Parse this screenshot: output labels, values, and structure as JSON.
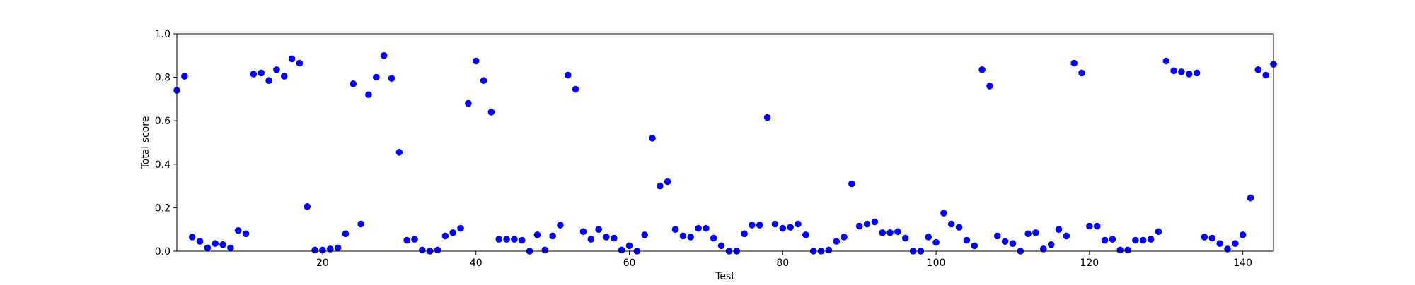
{
  "chart_data": {
    "type": "scatter",
    "title": "",
    "xlabel": "Test",
    "ylabel": "Total score",
    "xlim": [
      1,
      144
    ],
    "ylim": [
      0.0,
      1.0
    ],
    "x_ticks": [
      20,
      40,
      60,
      80,
      100,
      120,
      140
    ],
    "y_ticks": [
      0.0,
      0.2,
      0.4,
      0.6,
      0.8,
      1.0
    ],
    "y_tick_labels": [
      "0.0",
      "0.2",
      "0.4",
      "0.6",
      "0.8",
      "1.0"
    ],
    "grid": false,
    "marker_color": "#0000ff",
    "series": [
      {
        "x": [
          1,
          2,
          3,
          4,
          5,
          6,
          7,
          8,
          9,
          10,
          11,
          12,
          13,
          14,
          15,
          16,
          17,
          18,
          19,
          20,
          21,
          22,
          23,
          24,
          25,
          26,
          27,
          28,
          29,
          30,
          31,
          32,
          33,
          34,
          35,
          36,
          37,
          38,
          39,
          40,
          41,
          42,
          43,
          44,
          45,
          46,
          47,
          48,
          49,
          50,
          51,
          52,
          53,
          54,
          55,
          56,
          57,
          58,
          59,
          60,
          61,
          62,
          63,
          64,
          65,
          66,
          67,
          68,
          69,
          70,
          71,
          72,
          73,
          74,
          75,
          76,
          77,
          78,
          79,
          80,
          81,
          82,
          83,
          84,
          85,
          86,
          87,
          88,
          89,
          90,
          91,
          92,
          93,
          94,
          95,
          96,
          97,
          98,
          99,
          100,
          101,
          102,
          103,
          104,
          105,
          106,
          107,
          108,
          109,
          110,
          111,
          112,
          113,
          114,
          115,
          116,
          117,
          118,
          119,
          120,
          121,
          122,
          123,
          124,
          125,
          126,
          127,
          128,
          129,
          130,
          131,
          132,
          133,
          134,
          135,
          136,
          137,
          138,
          139,
          140,
          141,
          142,
          143,
          144
        ],
        "y": [
          0.74,
          0.805,
          0.065,
          0.045,
          0.015,
          0.035,
          0.03,
          0.015,
          0.095,
          0.08,
          0.815,
          0.82,
          0.785,
          0.835,
          0.805,
          0.885,
          0.865,
          0.205,
          0.005,
          0.005,
          0.01,
          0.015,
          0.08,
          0.77,
          0.125,
          0.72,
          0.8,
          0.9,
          0.795,
          0.455,
          0.05,
          0.055,
          0.005,
          0.0,
          0.005,
          0.07,
          0.085,
          0.105,
          0.68,
          0.875,
          0.785,
          0.64,
          0.055,
          0.055,
          0.055,
          0.05,
          0.0,
          0.075,
          0.005,
          0.07,
          0.12,
          0.81,
          0.745,
          0.09,
          0.055,
          0.1,
          0.065,
          0.06,
          0.005,
          0.025,
          0.0,
          0.075,
          0.52,
          0.3,
          0.32,
          0.1,
          0.07,
          0.065,
          0.105,
          0.105,
          0.06,
          0.025,
          0.0,
          0.0,
          0.08,
          0.12,
          0.12,
          0.615,
          0.125,
          0.105,
          0.11,
          0.125,
          0.075,
          0.0,
          0.0,
          0.005,
          0.045,
          0.065,
          0.31,
          0.115,
          0.125,
          0.135,
          0.085,
          0.085,
          0.09,
          0.06,
          0.0,
          0.0,
          0.065,
          0.04,
          0.175,
          0.125,
          0.11,
          0.05,
          0.025,
          0.835,
          0.76,
          0.07,
          0.045,
          0.035,
          0.0,
          0.08,
          0.085,
          0.01,
          0.03,
          0.1,
          0.07,
          0.865,
          0.82,
          0.115,
          0.115,
          0.05,
          0.055,
          0.005,
          0.005,
          0.05,
          0.05,
          0.055,
          0.09,
          0.875,
          0.83,
          0.825,
          0.815,
          0.82,
          0.065,
          0.06,
          0.035,
          0.01,
          0.035,
          0.075,
          0.245,
          0.835,
          0.81,
          0.86
        ]
      }
    ]
  }
}
